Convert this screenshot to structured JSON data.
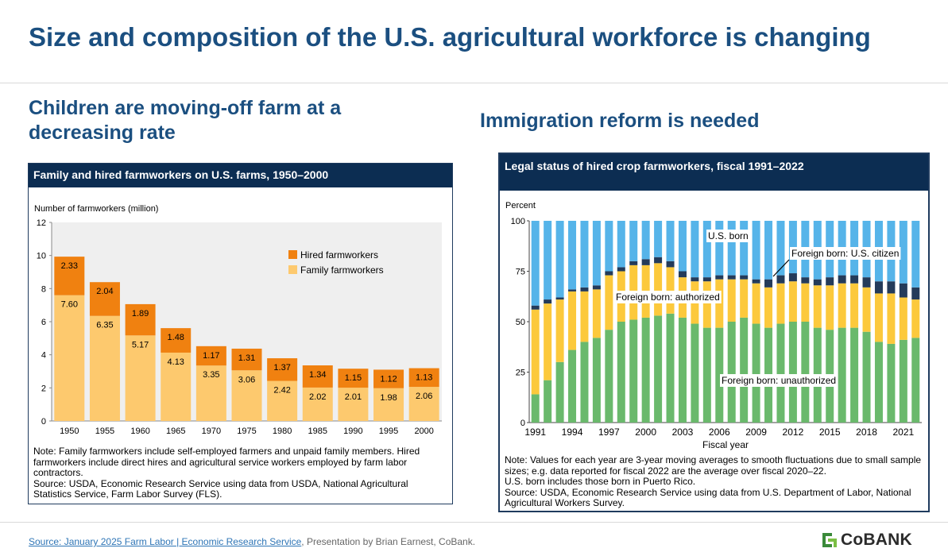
{
  "page": {
    "title": "Size and composition of the U.S. agricultural workforce is changing",
    "left_heading": "Children are moving-off farm at a decreasing rate",
    "right_heading": "Immigration reform is needed"
  },
  "colors": {
    "brand_blue": "#1b4f80",
    "header_navy": "#0c2d52",
    "hired": "#f08110",
    "family": "#fdc96e",
    "us_born": "#56b4e9",
    "fb_citizen": "#243b5a",
    "fb_authorized": "#fcc93c",
    "fb_unauthorized": "#6ab96c",
    "plot_bg": "#efefef"
  },
  "left_panel": {
    "header": "Family and hired farmworkers on U.S. farms, 1950–2000",
    "note": "Note: Family farmworkers include self-employed farmers and unpaid family members. Hired farmworkers include direct hires and agricultural service workers employed by farm labor contractors.",
    "source": "Source: USDA, Economic Research Service using data from USDA, National Agricultural Statistics Service, Farm Labor Survey (FLS)."
  },
  "right_panel": {
    "header": "Legal status of hired crop farmworkers, fiscal 1991–2022",
    "note": "Note: Values for each year are 3-year moving averages to smooth fluctuations due to small sample sizes; e.g. data reported for fiscal 2022 are the average over fiscal 2020–22.",
    "note2": "U.S. born includes those born in Puerto Rico.",
    "source": "Source: USDA, Economic Research Service using data from U.S. Department of Labor, National Agricultural Workers Survey."
  },
  "chart_data": [
    {
      "type": "bar",
      "stacked": true,
      "title": "Family and hired farmworkers on U.S. farms, 1950–2000",
      "ylabel": "Number of farmworkers (million)",
      "xlabel": "",
      "ylim": [
        0,
        12
      ],
      "yticks": [
        0,
        2,
        4,
        6,
        8,
        10,
        12
      ],
      "grid": false,
      "legend": "top-right",
      "categories": [
        "1950",
        "1955",
        "1960",
        "1965",
        "1970",
        "1975",
        "1980",
        "1985",
        "1990",
        "1995",
        "2000"
      ],
      "series": [
        {
          "name": "Family farmworkers",
          "values": [
            7.6,
            6.35,
            5.17,
            4.13,
            3.35,
            3.06,
            2.42,
            2.02,
            2.01,
            1.98,
            2.06
          ]
        },
        {
          "name": "Hired farmworkers",
          "values": [
            2.33,
            2.04,
            1.89,
            1.48,
            1.17,
            1.31,
            1.37,
            1.34,
            1.15,
            1.12,
            1.13
          ]
        }
      ],
      "legend_entries": [
        "Hired farmworkers",
        "Family farmworkers"
      ]
    },
    {
      "type": "bar",
      "stacked": true,
      "title": "Legal status of hired crop farmworkers, fiscal 1991–2022",
      "ylabel": "Percent",
      "xlabel": "Fiscal year",
      "ylim": [
        0,
        100
      ],
      "yticks": [
        0,
        25,
        50,
        75,
        100
      ],
      "grid": false,
      "xtick_labels": [
        "1991",
        "1994",
        "1997",
        "2000",
        "2003",
        "2006",
        "2009",
        "2012",
        "2015",
        "2018",
        "2021"
      ],
      "categories": [
        "1991",
        "1992",
        "1993",
        "1994",
        "1995",
        "1996",
        "1997",
        "1998",
        "1999",
        "2000",
        "2001",
        "2002",
        "2003",
        "2004",
        "2005",
        "2006",
        "2007",
        "2008",
        "2009",
        "2010",
        "2011",
        "2012",
        "2013",
        "2014",
        "2015",
        "2016",
        "2017",
        "2018",
        "2019",
        "2020",
        "2021",
        "2022"
      ],
      "series": [
        {
          "name": "Foreign born: unauthorized",
          "values": [
            14,
            21,
            30,
            36,
            40,
            42,
            46,
            50,
            51,
            52,
            53,
            54,
            52,
            49,
            47,
            47,
            50,
            52,
            49,
            47,
            49,
            50,
            50,
            47,
            46,
            47,
            47,
            45,
            40,
            39,
            41,
            42
          ]
        },
        {
          "name": "Foreign born: authorized",
          "values": [
            42,
            38,
            31,
            29,
            25,
            24,
            27,
            25,
            27,
            26,
            26,
            23,
            20,
            21,
            23,
            24,
            21,
            19,
            20,
            20,
            20,
            20,
            19,
            21,
            22,
            22,
            22,
            22,
            24,
            25,
            21,
            19
          ]
        },
        {
          "name": "Foreign born: U.S. citizen",
          "values": [
            2,
            2,
            1,
            1,
            2,
            2,
            2,
            2,
            2,
            3,
            3,
            3,
            3,
            2,
            2,
            2,
            2,
            2,
            2,
            4,
            4,
            4,
            3,
            3,
            4,
            4,
            4,
            5,
            6,
            6,
            7,
            6
          ]
        },
        {
          "name": "U.S. born",
          "values": [
            42,
            39,
            38,
            34,
            33,
            32,
            25,
            23,
            20,
            19,
            18,
            20,
            25,
            28,
            28,
            27,
            27,
            27,
            29,
            29,
            27,
            26,
            28,
            29,
            28,
            27,
            27,
            28,
            30,
            30,
            31,
            33
          ]
        }
      ],
      "annotations": [
        "U.S. born",
        "Foreign born: U.S. citizen",
        "Foreign born: authorized",
        "Foreign born: unauthorized"
      ]
    }
  ],
  "footer": {
    "link": "Source: January 2025 Farm Labor | Economic Research Service",
    "text": ", Presentation by Brian Earnest, CoBank.",
    "logo": "CoBANK"
  }
}
